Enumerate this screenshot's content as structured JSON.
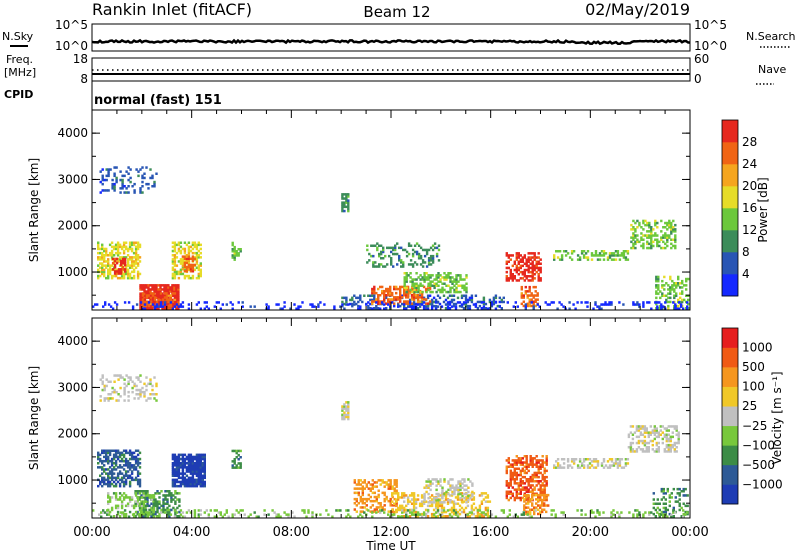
{
  "header": {
    "station": "Rankin Inlet (fitACF)",
    "beam": "Beam 12",
    "date": "02/May/2019"
  },
  "status": {
    "nsky_label": "N.Sky",
    "nsearch_label": "N.Search",
    "freq_label_1": "Freq.",
    "freq_label_2": "[MHz]",
    "nave_label": "Nave",
    "cpid_label": "CPID",
    "cpid_value": "normal (fast) 151",
    "noise_ticks_left": [
      "10^5",
      "10^0"
    ],
    "noise_ticks_right": [
      "10^5",
      "10^0"
    ],
    "freq_ticks": [
      "18",
      "8"
    ],
    "nave_ticks": [
      "60",
      "0"
    ]
  },
  "chart_data": [
    {
      "type": "heatmap",
      "name": "power",
      "ylabel": "Slant Range [km]",
      "ylim": [
        180,
        4500
      ],
      "yticks": [
        "1000",
        "2000",
        "3000",
        "4000"
      ],
      "ytick_values": [
        1000,
        2000,
        3000,
        4000
      ],
      "colorbar_label": "Power [dB]",
      "colorbar_ticks": [
        "4",
        "8",
        "12",
        "16",
        "20",
        "24",
        "28"
      ],
      "colorbar_colors": [
        "#1428ff",
        "#2855b4",
        "#3c8c5a",
        "#6cc83c",
        "#e6dc28",
        "#f5a51e",
        "#f06414",
        "#e6281e"
      ],
      "blobs": [
        {
          "t": [
            1.9,
            3.5
          ],
          "r": [
            200,
            700
          ],
          "lvl": 7,
          "d": 0.85
        },
        {
          "t": [
            2.0,
            3.3
          ],
          "r": [
            250,
            550
          ],
          "lvl": 6,
          "d": 0.6
        },
        {
          "t": [
            0.2,
            1.9
          ],
          "r": [
            850,
            1650
          ],
          "lvl": 4,
          "d": 0.55
        },
        {
          "t": [
            0.8,
            1.3
          ],
          "r": [
            950,
            1300
          ],
          "lvl": 7,
          "d": 0.65
        },
        {
          "t": [
            3.2,
            4.4
          ],
          "r": [
            850,
            1650
          ],
          "lvl": 4,
          "d": 0.55
        },
        {
          "t": [
            3.6,
            4.1
          ],
          "r": [
            1000,
            1350
          ],
          "lvl": 6,
          "d": 0.6
        },
        {
          "t": [
            5.6,
            6.0
          ],
          "r": [
            1250,
            1650
          ],
          "lvl": 3,
          "d": 0.55
        },
        {
          "t": [
            0.3,
            2.6
          ],
          "r": [
            2700,
            3250
          ],
          "lvl": 1,
          "d": 0.25
        },
        {
          "t": [
            10.0,
            10.3
          ],
          "r": [
            2300,
            2700
          ],
          "lvl": 2,
          "d": 0.75
        },
        {
          "t": [
            10.0,
            16.5
          ],
          "r": [
            200,
            500
          ],
          "lvl": 1,
          "d": 0.35
        },
        {
          "t": [
            11.2,
            13.6
          ],
          "r": [
            300,
            700
          ],
          "lvl": 6,
          "d": 0.55
        },
        {
          "t": [
            12.5,
            15.0
          ],
          "r": [
            550,
            1000
          ],
          "lvl": 3,
          "d": 0.45
        },
        {
          "t": [
            11.0,
            14.0
          ],
          "r": [
            1100,
            1600
          ],
          "lvl": 2,
          "d": 0.3
        },
        {
          "t": [
            16.6,
            18.0
          ],
          "r": [
            800,
            1400
          ],
          "lvl": 7,
          "d": 0.55
        },
        {
          "t": [
            17.2,
            17.9
          ],
          "r": [
            250,
            700
          ],
          "lvl": 6,
          "d": 0.55
        },
        {
          "t": [
            18.5,
            21.5
          ],
          "r": [
            1250,
            1450
          ],
          "lvl": 3,
          "d": 0.45
        },
        {
          "t": [
            21.6,
            23.4
          ],
          "r": [
            1500,
            2100
          ],
          "lvl": 3,
          "d": 0.4
        },
        {
          "t": [
            22.6,
            24.0
          ],
          "r": [
            200,
            900
          ],
          "lvl": 3,
          "d": 0.35
        },
        {
          "t": [
            0.0,
            24.0
          ],
          "r": [
            190,
            330
          ],
          "lvl": 0,
          "d": 0.22
        }
      ]
    },
    {
      "type": "heatmap",
      "name": "velocity",
      "ylabel": "Slant Range [km]",
      "ylim": [
        180,
        4500
      ],
      "yticks": [
        "1000",
        "2000",
        "3000",
        "4000"
      ],
      "ytick_values": [
        1000,
        2000,
        3000,
        4000
      ],
      "colorbar_label": "Velocity [m s⁻¹]",
      "colorbar_ticks": [
        "1000",
        "500",
        "100",
        "25",
        "−25",
        "−100",
        "−500",
        "−1000"
      ],
      "colorbar_colors": [
        "#1e3cb4",
        "#2d5a96",
        "#3c8c46",
        "#78c83c",
        "#c0c0c0",
        "#f0c828",
        "#f5961e",
        "#f05a14",
        "#e61e1e"
      ],
      "blobs": [
        {
          "t": [
            0.2,
            1.9
          ],
          "r": [
            850,
            1650
          ],
          "lvl": 1,
          "d": 0.6
        },
        {
          "t": [
            3.2,
            4.5
          ],
          "r": [
            850,
            1550
          ],
          "lvl": 0,
          "d": 0.85
        },
        {
          "t": [
            1.7,
            3.5
          ],
          "r": [
            200,
            750
          ],
          "lvl": 2,
          "d": 0.5
        },
        {
          "t": [
            0.6,
            2.5
          ],
          "r": [
            200,
            700
          ],
          "lvl": 3,
          "d": 0.35
        },
        {
          "t": [
            5.6,
            6.0
          ],
          "r": [
            1250,
            1650
          ],
          "lvl": 2,
          "d": 0.55
        },
        {
          "t": [
            0.3,
            2.6
          ],
          "r": [
            2700,
            3250
          ],
          "lvl": 4,
          "d": 0.25
        },
        {
          "t": [
            10.0,
            10.3
          ],
          "r": [
            2300,
            2700
          ],
          "lvl": 4,
          "d": 0.75
        },
        {
          "t": [
            10.5,
            12.2
          ],
          "r": [
            300,
            1000
          ],
          "lvl": 6,
          "d": 0.45
        },
        {
          "t": [
            12.0,
            16.0
          ],
          "r": [
            200,
            700
          ],
          "lvl": 5,
          "d": 0.45
        },
        {
          "t": [
            13.3,
            15.3
          ],
          "r": [
            500,
            1000
          ],
          "lvl": 4,
          "d": 0.4
        },
        {
          "t": [
            16.6,
            18.2
          ],
          "r": [
            550,
            1500
          ],
          "lvl": 7,
          "d": 0.55
        },
        {
          "t": [
            17.3,
            18.3
          ],
          "r": [
            250,
            700
          ],
          "lvl": 6,
          "d": 0.5
        },
        {
          "t": [
            18.5,
            21.5
          ],
          "r": [
            1250,
            1450
          ],
          "lvl": 4,
          "d": 0.45
        },
        {
          "t": [
            21.5,
            23.5
          ],
          "r": [
            1600,
            2150
          ],
          "lvl": 4,
          "d": 0.45
        },
        {
          "t": [
            22.5,
            24.0
          ],
          "r": [
            200,
            800
          ],
          "lvl": 2,
          "d": 0.35
        },
        {
          "t": [
            0.0,
            24.0
          ],
          "r": [
            190,
            330
          ],
          "lvl": 3,
          "d": 0.18
        }
      ]
    }
  ],
  "x_axis": {
    "xlabel": "Time UT",
    "ticks": [
      "00:00",
      "04:00",
      "08:00",
      "12:00",
      "16:00",
      "20:00",
      "00:00"
    ],
    "tick_hours": [
      0,
      4,
      8,
      12,
      16,
      20,
      24
    ]
  }
}
